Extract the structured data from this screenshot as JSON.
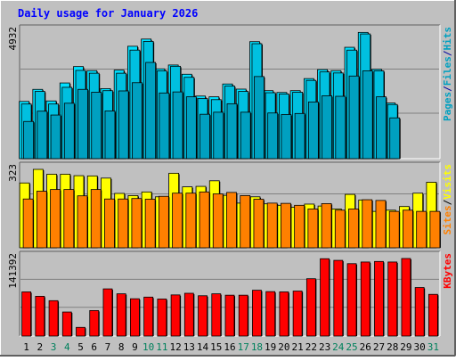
{
  "title": "Daily usage for January 2026",
  "colors": {
    "background": "#c0c0c0",
    "title": "#0000ff",
    "hits_front": "#00e0ff",
    "hits_back": "#008080",
    "files_front": "#00c0e0",
    "files_back": "#0000a0",
    "pages_front": "#00a0c0",
    "visits_front": "#ffff00",
    "visits_back": "#a0a000",
    "sites_front": "#ff8000",
    "sites_back": "#a04000",
    "kbytes_front": "#ff0000",
    "kbytes_back": "#800000",
    "weekend_label": "#00805c",
    "weekday_label": "#000000",
    "gridline": "#808080"
  },
  "chart_data": [
    {
      "type": "bar",
      "panel": "hits-files-pages",
      "ylabel_parts": [
        "Pages",
        "/",
        "Files",
        "/",
        "Hits"
      ],
      "ymax_label": "4932",
      "ylim": [
        0,
        4932
      ],
      "grid": true,
      "categories": [
        "1",
        "2",
        "3",
        "4",
        "5",
        "6",
        "7",
        "8",
        "9",
        "10",
        "11",
        "12",
        "13",
        "14",
        "15",
        "16",
        "17",
        "18",
        "19",
        "20",
        "21",
        "22",
        "23",
        "24",
        "25",
        "26",
        "27",
        "28",
        "29",
        "30",
        "31"
      ],
      "series": [
        {
          "name": "Hits",
          "values": [
            2230,
            2700,
            2250,
            2950,
            3590,
            3430,
            2730,
            3450,
            4380,
            4660,
            3500,
            3650,
            3290,
            2440,
            2410,
            2910,
            2710,
            4560,
            2650,
            2580,
            2650,
            3120,
            3470,
            3430,
            4340,
            4920,
            3480,
            2170,
            0,
            0,
            0
          ]
        },
        {
          "name": "Files",
          "values": [
            2130,
            2620,
            2130,
            2780,
            3440,
            3330,
            2650,
            3330,
            4230,
            4570,
            3420,
            3600,
            3170,
            2340,
            2300,
            2830,
            2620,
            4480,
            2570,
            2520,
            2590,
            3050,
            3380,
            3340,
            4230,
            4860,
            3420,
            2110,
            0,
            0,
            0
          ]
        },
        {
          "name": "Pages",
          "values": [
            1450,
            1850,
            1700,
            2160,
            2700,
            2590,
            1860,
            2640,
            2960,
            3750,
            2560,
            2600,
            2410,
            1730,
            1810,
            2140,
            1810,
            3200,
            1780,
            1720,
            1760,
            2210,
            2450,
            2430,
            3220,
            3420,
            2410,
            1590,
            0,
            0,
            0
          ]
        }
      ]
    },
    {
      "type": "bar",
      "panel": "visits-sites",
      "ylabel_parts": [
        "Sites",
        "/",
        "Visits"
      ],
      "ymax_label": "323",
      "ylim": [
        0,
        323
      ],
      "grid": true,
      "categories": [
        "1",
        "2",
        "3",
        "4",
        "5",
        "6",
        "7",
        "8",
        "9",
        "10",
        "11",
        "12",
        "13",
        "14",
        "15",
        "16",
        "17",
        "18",
        "19",
        "20",
        "21",
        "22",
        "23",
        "24",
        "25",
        "26",
        "27",
        "28",
        "29",
        "30",
        "31"
      ],
      "series": [
        {
          "name": "Visits",
          "values": [
            267,
            323,
            303,
            303,
            297,
            296,
            287,
            224,
            215,
            230,
            210,
            307,
            251,
            253,
            276,
            216,
            184,
            210,
            181,
            175,
            167,
            180,
            172,
            160,
            220,
            197,
            150,
            155,
            170,
            225,
            270
          ]
        },
        {
          "name": "Sites",
          "values": [
            201,
            233,
            240,
            240,
            214,
            240,
            201,
            201,
            203,
            200,
            212,
            225,
            225,
            230,
            222,
            228,
            215,
            200,
            184,
            183,
            175,
            160,
            182,
            155,
            160,
            198,
            195,
            150,
            155,
            150,
            150
          ]
        }
      ]
    },
    {
      "type": "bar",
      "panel": "kbytes",
      "ylabel_parts": [
        "KBytes"
      ],
      "ymax_label": "141392",
      "ylim": [
        0,
        141392
      ],
      "grid": true,
      "categories": [
        "1",
        "2",
        "3",
        "4",
        "5",
        "6",
        "7",
        "8",
        "9",
        "10",
        "11",
        "12",
        "13",
        "14",
        "15",
        "16",
        "17",
        "18",
        "19",
        "20",
        "21",
        "22",
        "23",
        "24",
        "25",
        "26",
        "27",
        "28",
        "29",
        "30",
        "31"
      ],
      "weekend_days": [
        "3",
        "4",
        "10",
        "11",
        "17",
        "18",
        "24",
        "25",
        "31"
      ],
      "series": [
        {
          "name": "KBytes",
          "values": [
            80500,
            72500,
            64500,
            43800,
            15800,
            46500,
            86000,
            77000,
            68000,
            71000,
            67500,
            75000,
            78000,
            73500,
            77000,
            74500,
            74500,
            83500,
            81000,
            80500,
            82000,
            104500,
            141000,
            138000,
            132000,
            135000,
            136000,
            135000,
            141392,
            88500,
            76000
          ]
        }
      ]
    }
  ]
}
